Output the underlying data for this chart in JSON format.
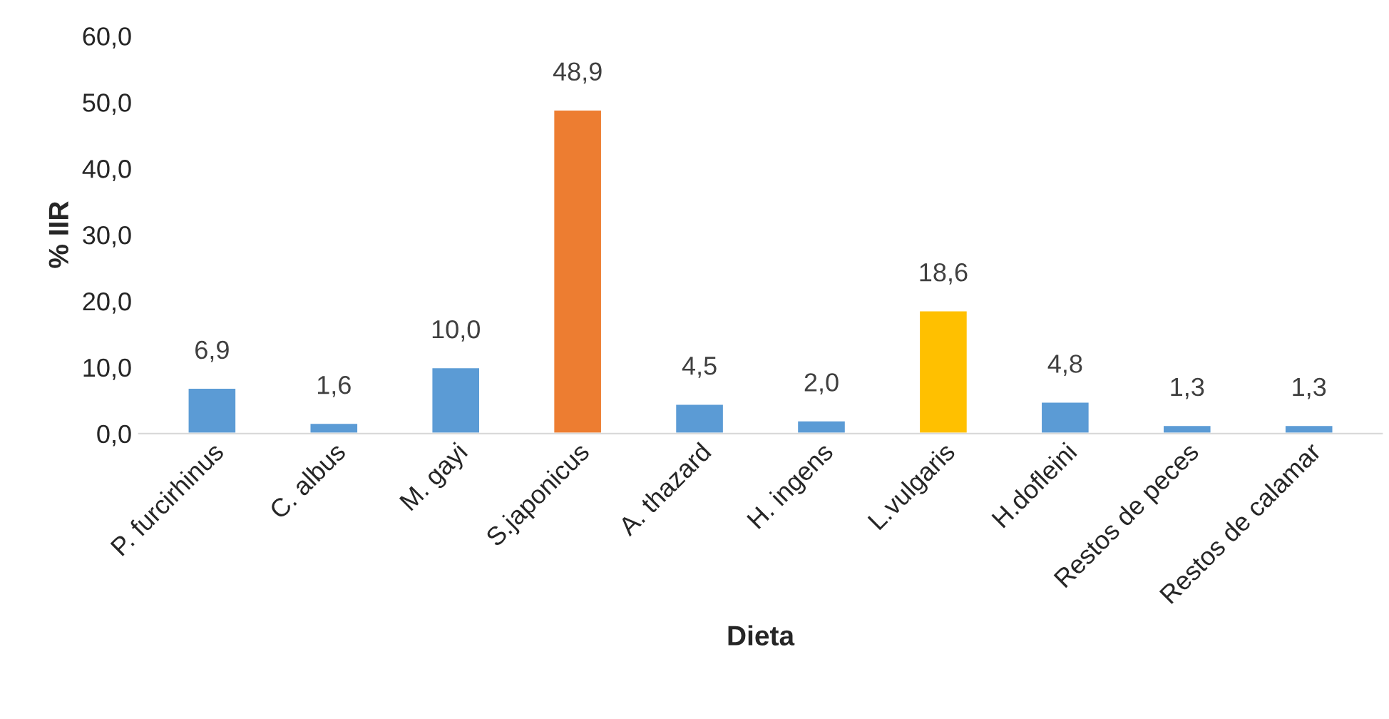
{
  "chart_data": {
    "type": "bar",
    "xlabel": "Dieta",
    "ylabel": "% IIR",
    "categories": [
      "P. furcirhinus",
      "C. albus",
      "M. gayi",
      "S.japonicus",
      "A. thazard",
      "H. ingens",
      "L.vulgaris",
      "H.dofleini",
      "Restos de peces",
      "Restos de calamar"
    ],
    "values": [
      6.9,
      1.6,
      10.0,
      48.9,
      4.5,
      2.0,
      18.6,
      4.8,
      1.3,
      1.3
    ],
    "value_labels": [
      "6,9",
      "1,6",
      "10,0",
      "48,9",
      "4,5",
      "2,0",
      "18,6",
      "4,8",
      "1,3",
      "1,3"
    ],
    "colors": [
      "#5b9bd5",
      "#5b9bd5",
      "#5b9bd5",
      "#ed7d31",
      "#5b9bd5",
      "#5b9bd5",
      "#ffc000",
      "#5b9bd5",
      "#5b9bd5",
      "#5b9bd5"
    ],
    "ylim": [
      0,
      60
    ],
    "yticks": [
      {
        "value": 0,
        "label": "0,0"
      },
      {
        "value": 10,
        "label": "10,0"
      },
      {
        "value": 20,
        "label": "20,0"
      },
      {
        "value": 30,
        "label": "30,0"
      },
      {
        "value": 40,
        "label": "40,0"
      },
      {
        "value": 50,
        "label": "50,0"
      },
      {
        "value": 60,
        "label": "60,0"
      }
    ],
    "grid": false,
    "legend": false
  }
}
